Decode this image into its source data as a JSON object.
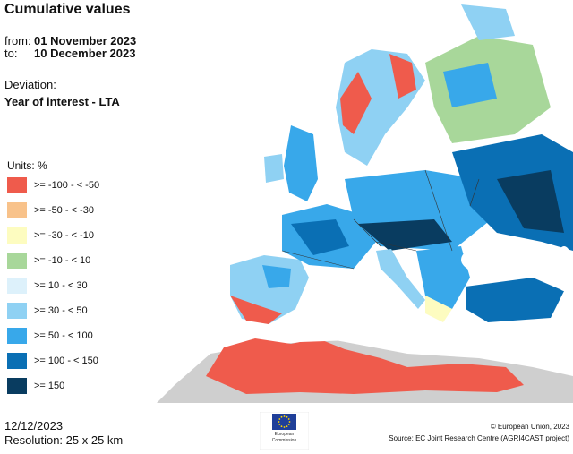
{
  "header": {
    "title": "Cumulative values",
    "from_label": "from:",
    "from_value": "01 November 2023",
    "to_label": "to:",
    "to_value": "10 December 2023",
    "deviation_label": "Deviation:",
    "deviation_value": "Year of interest - LTA"
  },
  "legend": {
    "units": "Units: %",
    "items": [
      {
        "label": ">= -100 - < -50",
        "color": "#ef5b4c"
      },
      {
        "label": ">= -50 - < -30",
        "color": "#f8c28a"
      },
      {
        "label": ">= -30 - < -10",
        "color": "#fdfcc0"
      },
      {
        "label": ">= -10 - < 10",
        "color": "#a8d79a"
      },
      {
        "label": ">= 10 - < 30",
        "color": "#ddf1fb"
      },
      {
        "label": ">= 30 - < 50",
        "color": "#8fd1f3"
      },
      {
        "label": ">= 50 - < 100",
        "color": "#38a8ea"
      },
      {
        "label": ">= 100 - < 150",
        "color": "#0a6fb4"
      },
      {
        "label": ">= 150",
        "color": "#093c60"
      }
    ]
  },
  "footer": {
    "date": "12/12/2023",
    "resolution": "Resolution: 25 x 25 km",
    "copyright": "© European Union, 2023",
    "source": "Source: EC Joint Research Centre (AGRI4CAST project)",
    "logo_text_1": "European",
    "logo_text_2": "Commission"
  },
  "colors": {
    "sea": "#ffffff",
    "no_data": "#cfcfcf"
  }
}
